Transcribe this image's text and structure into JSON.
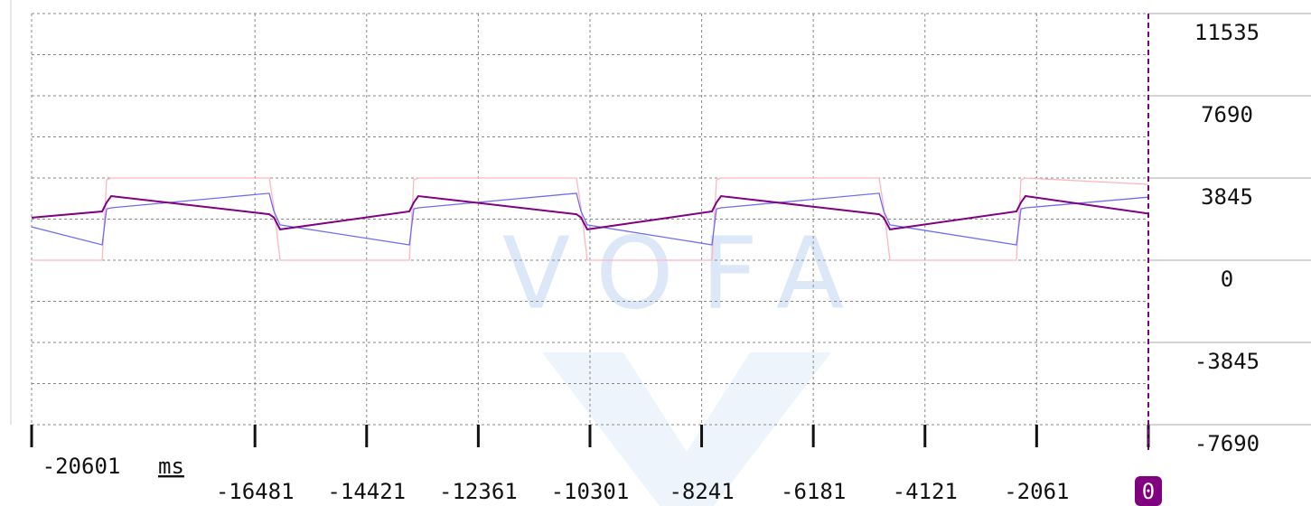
{
  "chart_data": {
    "type": "line",
    "watermark": "VOFA",
    "x_label": "ms",
    "x": [
      -20601,
      -19300,
      -19217,
      -19133,
      -16217,
      -16133,
      -16017,
      -13633,
      -13550,
      -13467,
      -10550,
      -10467,
      -10350,
      -8050,
      -7967,
      -7883,
      -4967,
      -4883,
      -4767,
      -2433,
      -2350,
      -2267,
      0
    ],
    "series": [
      {
        "color": "#ffb6c1",
        "values": [
          0,
          0,
          3760,
          3845,
          3845,
          2500,
          0,
          0,
          3760,
          3845,
          3845,
          2500,
          0,
          0,
          3760,
          3845,
          3845,
          2500,
          0,
          0,
          3760,
          3845,
          3550
        ]
      },
      {
        "color": "#6f6cf5",
        "values": [
          1560,
          720,
          2400,
          2450,
          3130,
          2300,
          1650,
          720,
          2400,
          2450,
          3130,
          2300,
          1650,
          720,
          2400,
          2450,
          3130,
          2300,
          1650,
          720,
          2400,
          2450,
          2950
        ]
      },
      {
        "color": "#800080",
        "values": [
          1990,
          2280,
          2700,
          3000,
          2150,
          2000,
          1440,
          2280,
          2700,
          3000,
          2150,
          2000,
          1440,
          2280,
          2700,
          3000,
          2150,
          2000,
          1440,
          2280,
          2700,
          3000,
          2180
        ]
      }
    ],
    "xlim": [
      -20601,
      0
    ],
    "xticks": [
      -20601,
      -16481,
      -14421,
      -12361,
      -10301,
      -8241,
      -6181,
      -4121,
      -2061,
      0
    ],
    "ylim": [
      -7690,
      11535
    ],
    "yticks": [
      11535,
      7690,
      3845,
      0,
      -3845,
      -7690
    ],
    "grid": true,
    "cursor_color": "#800080"
  }
}
